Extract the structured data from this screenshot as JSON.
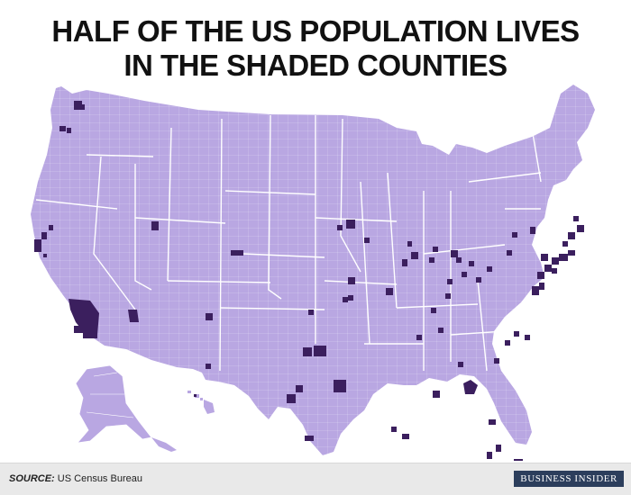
{
  "title": {
    "line1": "HALF OF THE US POPULATION LIVES",
    "line2": "IN THE SHADED COUNTIES"
  },
  "footer": {
    "source_label": "SOURCE:",
    "source_value": "US Census Bureau",
    "brand": "BUSINESS INSIDER"
  },
  "map": {
    "colors": {
      "base_fill": "#b9a7e2",
      "shaded_fill": "#3b1f5e",
      "border": "#ffffff"
    },
    "shaded_county_areas": [
      "Los Angeles, CA",
      "San Diego, CA",
      "Orange, CA",
      "San Bernardino, CA",
      "Riverside, CA",
      "San Francisco Bay Area, CA",
      "Sacramento, CA",
      "Fresno, CA",
      "King, WA",
      "Pierce, WA",
      "Snohomish, WA",
      "Multnomah, OR",
      "Maricopa, AZ",
      "Pima, AZ",
      "Clark, NV",
      "Salt Lake, UT",
      "Denver Metro, CO",
      "Bernalillo, NM",
      "El Paso, TX",
      "Dallas, TX",
      "Tarrant, TX",
      "Harris, TX",
      "Bexar, TX",
      "Travis, TX",
      "Hidalgo, TX",
      "Oklahoma, OK",
      "Tulsa, OK",
      "Johnson, KS",
      "Jackson, MO",
      "St. Louis, MO",
      "Hennepin, MN",
      "Ramsey, MN",
      "Cook, IL",
      "DuPage, IL",
      "Lake, IL",
      "Milwaukee, WI",
      "Wayne, MI",
      "Oakland, MI",
      "Macomb, MI",
      "Kent, MI",
      "Marion, IN",
      "Franklin, OH",
      "Cuyahoga, OH",
      "Hamilton, OH",
      "Allegheny, PA",
      "Philadelphia, PA",
      "Jefferson, KY",
      "Davidson, TN",
      "Shelby, TN",
      "Fulton, GA",
      "DeKalb, GA",
      "Gwinnett, GA",
      "Mecklenburg, NC",
      "Wake, NC",
      "Fairfax, VA",
      "Montgomery, MD",
      "Baltimore, MD",
      "New York City, NY",
      "Nassau, NY",
      "Suffolk, NY",
      "Erie, NY",
      "Monroe, NY",
      "Bergen, NJ",
      "Middlesex, MA",
      "Suffolk, MA",
      "Hartford, CT",
      "Jefferson, AL",
      "Orleans, LA",
      "East Baton Rouge, LA",
      "Duval, FL",
      "Orange, FL",
      "Hillsborough, FL",
      "Pinellas, FL",
      "Miami-Dade, FL",
      "Broward, FL",
      "Palm Beach, FL",
      "Honolulu, HI"
    ]
  }
}
